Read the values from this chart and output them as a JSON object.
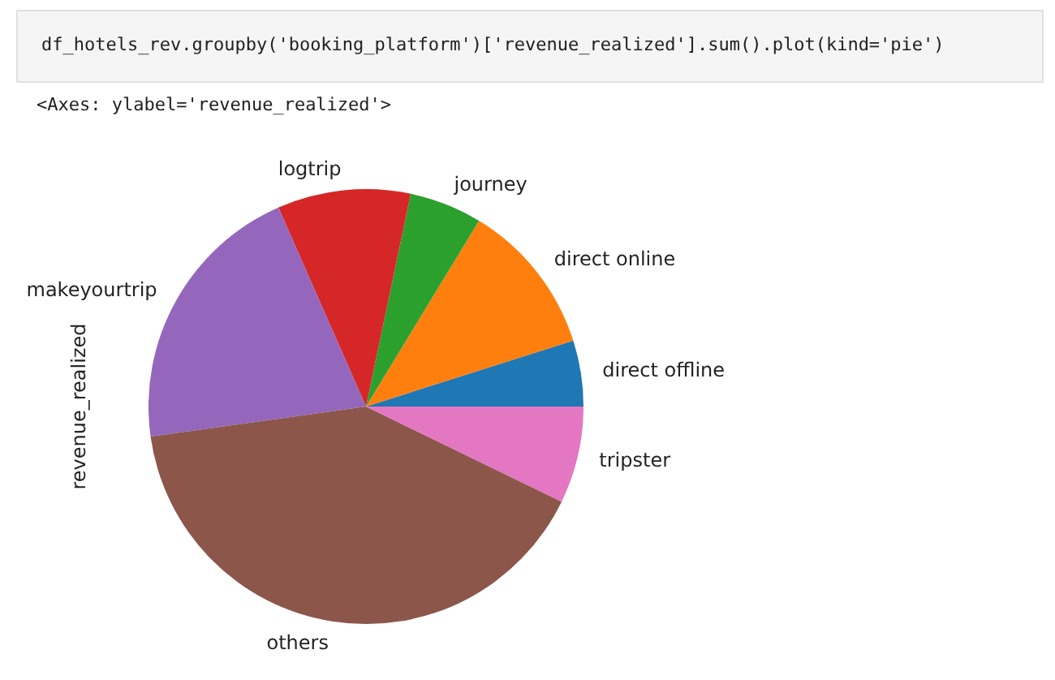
{
  "chart_data": {
    "type": "pie",
    "ylabel": "revenue_realized",
    "categories": [
      "direct offline",
      "direct online",
      "journey",
      "logtrip",
      "makeyourtrip",
      "others",
      "tripster"
    ],
    "values": [
      4.9,
      11.4,
      5.4,
      9.9,
      20.6,
      40.6,
      7.2
    ],
    "colors": [
      "#1f77b4",
      "#ff7f0e",
      "#2ca02c",
      "#d62728",
      "#9467bd",
      "#8c564b",
      "#e377c2"
    ],
    "legend": false,
    "annotations": [
      "df_hotels_rev.groupby('booking_platform')['revenue_realized'].sum().plot(kind='pie')",
      "<Axes: ylabel='revenue_realized'>"
    ]
  }
}
